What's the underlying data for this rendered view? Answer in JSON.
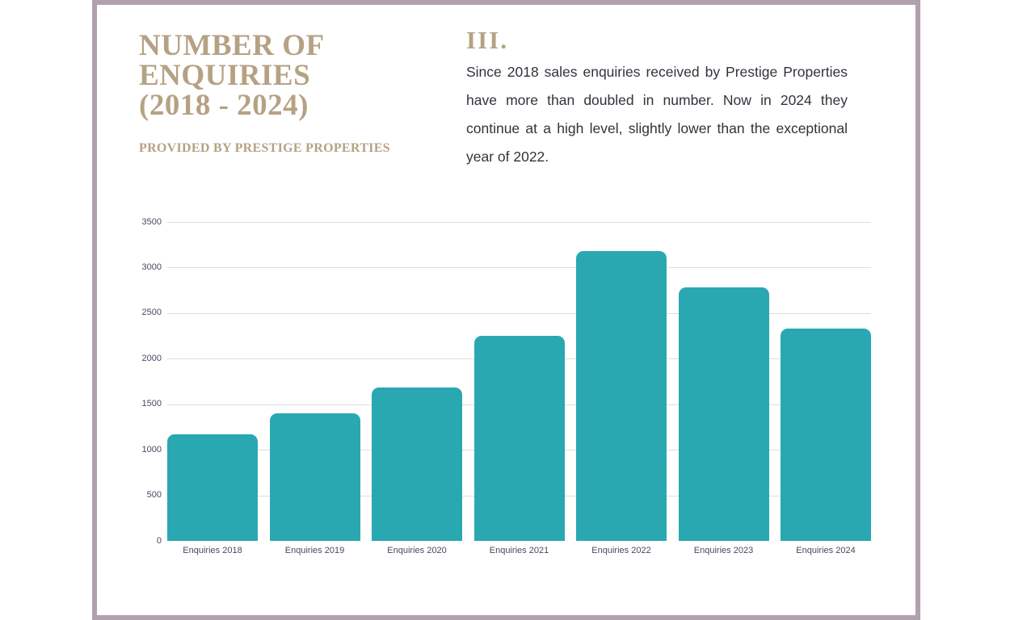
{
  "theme": {
    "accent-gold": "#b5a284",
    "bar-teal": "#2aa8b2",
    "border-mauve": "#b1a0ae",
    "body-text": "#33323c",
    "axis-text": "#4e4561",
    "gridline": "#dedede"
  },
  "header": {
    "title": "NUMBER OF\nENQUIRIES\n(2018 - 2024)",
    "subtitle": "PROVIDED BY PRESTIGE PROPERTIES"
  },
  "section": {
    "numeral": "III.",
    "body": "Since 2018 sales enquiries received by Prestige Properties have more than doubled in number. Now in 2024 they continue at a high level, slightly lower than the exceptional year of 2022."
  },
  "chart_data": {
    "type": "bar",
    "categories": [
      "Enquiries 2018",
      "Enquiries 2019",
      "Enquiries 2020",
      "Enquiries 2021",
      "Enquiries 2022",
      "Enquiries 2023",
      "Enquiries 2024"
    ],
    "values": [
      1170,
      1400,
      1680,
      2250,
      3180,
      2780,
      2330
    ],
    "title": "",
    "xlabel": "",
    "ylabel": "",
    "ylim": [
      0,
      3500
    ],
    "ytick_step": 500,
    "yticks": [
      0,
      500,
      1000,
      1500,
      2000,
      2500,
      3000,
      3500
    ],
    "grid": true,
    "legend": false,
    "bar_corner": "rounded-top"
  }
}
